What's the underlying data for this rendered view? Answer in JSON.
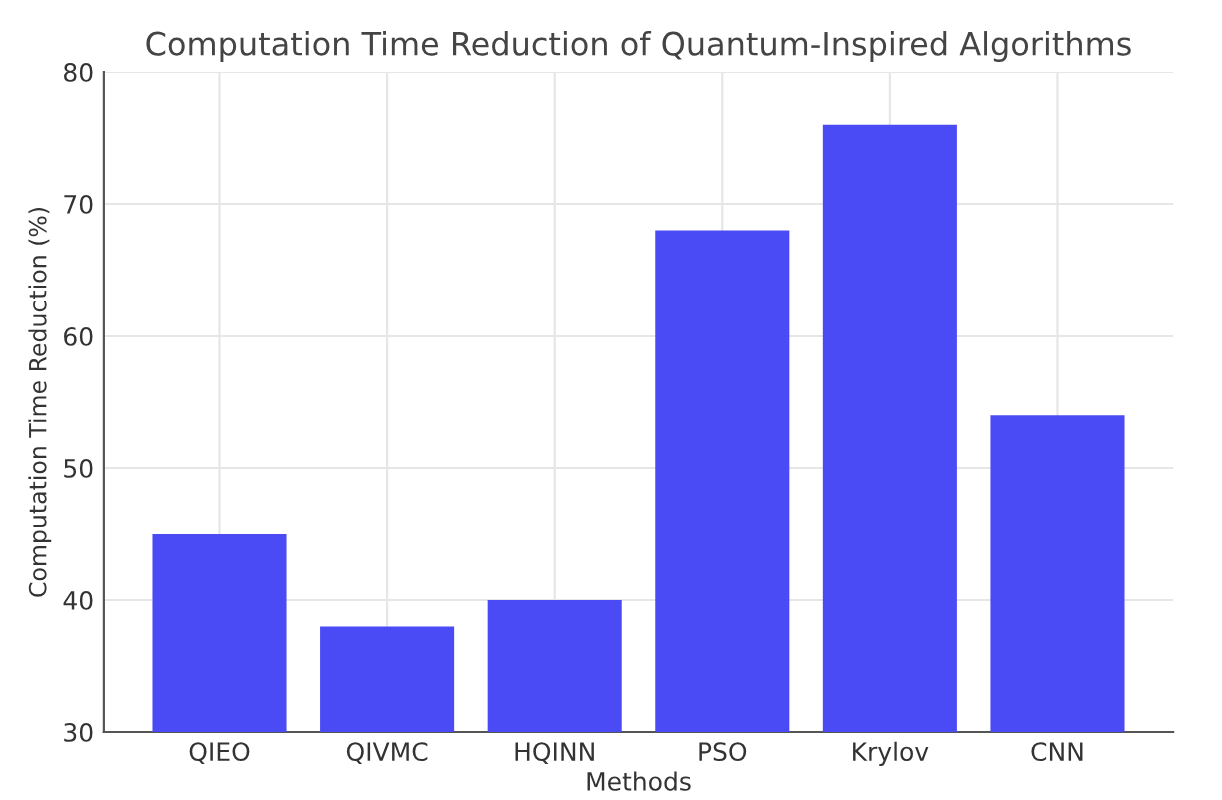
{
  "chart_data": {
    "type": "bar",
    "title": "Computation Time Reduction of Quantum-Inspired Algorithms",
    "xlabel": "Methods",
    "ylabel": "Computation Time Reduction (%)",
    "categories": [
      "QIEO",
      "QIVMC",
      "HQINN",
      "PSO",
      "Krylov",
      "CNN"
    ],
    "values": [
      45,
      38,
      40,
      68,
      76,
      54
    ],
    "color": "#4b4bf5",
    "ylim": [
      30,
      80
    ],
    "yticks": [
      30,
      40,
      50,
      60,
      70,
      80
    ],
    "grid": true
  }
}
